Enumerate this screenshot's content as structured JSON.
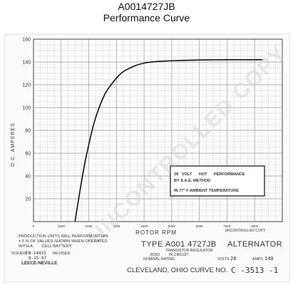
{
  "header": {
    "part_number": "A0014727JB",
    "subtitle": "Performance Curve"
  },
  "watermark": "UNCONTROLLED COPY",
  "chart_data": {
    "type": "line",
    "xlabel": "ROTOR RPM",
    "ylabel": "D.C. AMPERES",
    "xlim": [
      0,
      9000
    ],
    "ylim": [
      0,
      160
    ],
    "x_ticks": [
      {
        "value": 0,
        "label": "0"
      },
      {
        "value": 1000,
        "label": "1000"
      },
      {
        "value": 2000,
        "label": "2000"
      },
      {
        "value": 3000,
        "label": "3000"
      },
      {
        "value": 4000,
        "label": "4000"
      },
      {
        "value": 5000,
        "label": "5000"
      },
      {
        "value": 6000,
        "label": "6000"
      },
      {
        "value": 7000,
        "label": "7000"
      },
      {
        "value": 8000,
        "label": "8000"
      }
    ],
    "y_ticks": [
      {
        "value": 20,
        "label": "20"
      },
      {
        "value": 40,
        "label": "40"
      },
      {
        "value": 60,
        "label": "60"
      },
      {
        "value": 80,
        "label": "80"
      },
      {
        "value": 100,
        "label": "100"
      },
      {
        "value": 120,
        "label": "120"
      },
      {
        "value": 140,
        "label": "140"
      },
      {
        "value": 160,
        "label": "160"
      }
    ],
    "grid": true,
    "series": [
      {
        "x": [
          1500,
          1800,
          2000,
          2200,
          2400,
          2600,
          2800,
          3000,
          3200,
          3500,
          3800,
          4200,
          4800,
          5500,
          6500,
          7500,
          8300
        ],
        "y": [
          0,
          45,
          68,
          88,
          102,
          113,
          120,
          126,
          131,
          135,
          138,
          140,
          141,
          141.5,
          142,
          142,
          142
        ]
      }
    ],
    "legend_box": {
      "line1": "28   VOLT      HOT      PERFORMANCE",
      "line2": "BY S.A.E. METHOD",
      "line3": "IN 77° F  AMBIENT TEMPERATURE"
    },
    "annotation": "UNCONTROLLED COPY"
  },
  "footer": {
    "production_note": "PRODUCTION UNITS WILL PERFORM WITHIN\n± 5 % OF VALUES SHOWN WHEN OPERATED\nWITH A        CELL BATTERY.",
    "issued_label": "ISSUED",
    "issued_value": "EN-14435",
    "revised_label": "REVISED",
    "date": "8-25-97",
    "company": "LEECE-NEVILLE",
    "type_label": "TYPE",
    "type_value": "A001 4727JB",
    "product": "ALTERNATOR",
    "regulator_line1": "TRANSISTOR REGULATOR",
    "regulator_line2": "RODI         IN CIRCUIT",
    "nominal_rating": "NOMINAL RATING",
    "volts_label": "VOLTS",
    "volts_value": "28",
    "amps_label": "AMPS",
    "amps_value": "140",
    "location": "CLEVELAND, OHIO   CURVE NO.",
    "curve_number": "C -3513 -1"
  }
}
